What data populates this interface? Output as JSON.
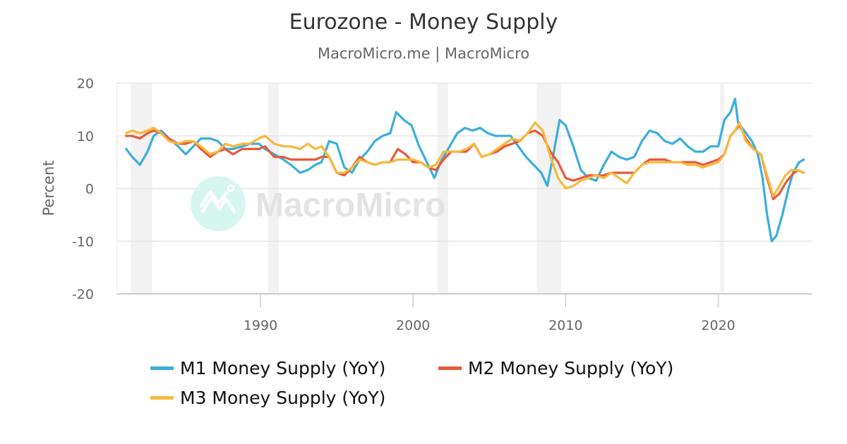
{
  "chart_data": {
    "type": "line",
    "title": "Eurozone - Money Supply",
    "subtitle": "MacroMicro.me | MacroMicro",
    "xlabel": "",
    "ylabel": "Percent",
    "ylim": [
      -20,
      20
    ],
    "yticks": [
      20,
      10,
      0,
      -10,
      -20
    ],
    "xticks": [
      1990,
      2000,
      2010,
      2020
    ],
    "xlim": [
      1981.0,
      2026.0
    ],
    "grid": true,
    "legend_position": "bottom",
    "watermark": "MacroMicro",
    "shaded_periods": [
      [
        1981.5,
        1982.9
      ],
      [
        1990.5,
        1991.2
      ],
      [
        2001.6,
        2002.3
      ],
      [
        2008.1,
        2009.7
      ],
      [
        2020.1,
        2020.4
      ]
    ],
    "series": [
      {
        "name": "M1 Money Supply (YoY)",
        "color": "#3aaedb",
        "x": [
          1981.2,
          1981.6,
          1982.1,
          1982.6,
          1983.0,
          1983.5,
          1984.0,
          1984.6,
          1985.1,
          1985.6,
          1986.1,
          1986.7,
          1987.2,
          1987.7,
          1988.2,
          1988.8,
          1989.3,
          1989.9,
          1990.3,
          1990.9,
          1991.5,
          1992.0,
          1992.6,
          1993.1,
          1993.6,
          1994.0,
          1994.5,
          1995.0,
          1995.5,
          1996.0,
          1996.5,
          1997.0,
          1997.5,
          1998.0,
          1998.5,
          1998.9,
          1999.4,
          1999.9,
          2000.4,
          2000.9,
          2001.4,
          2001.8,
          2002.3,
          2002.9,
          2003.4,
          2003.9,
          2004.4,
          2004.9,
          2005.4,
          2005.9,
          2006.4,
          2006.9,
          2007.4,
          2007.9,
          2008.4,
          2008.8,
          2009.2,
          2009.6,
          2010.0,
          2010.5,
          2011.0,
          2011.5,
          2012.0,
          2012.5,
          2013.0,
          2013.5,
          2014.0,
          2014.5,
          2015.0,
          2015.5,
          2016.0,
          2016.5,
          2017.0,
          2017.5,
          2018.0,
          2018.5,
          2019.0,
          2019.5,
          2020.0,
          2020.4,
          2020.8,
          2021.1,
          2021.3,
          2021.7,
          2022.2,
          2022.6,
          2022.9,
          2023.2,
          2023.5,
          2023.8,
          2024.2,
          2024.6,
          2024.9,
          2025.3,
          2025.6
        ],
        "y": [
          7.5,
          6.0,
          4.5,
          7.0,
          10.0,
          11.0,
          9.5,
          8.0,
          6.5,
          8.0,
          9.5,
          9.5,
          9.0,
          7.5,
          7.5,
          8.0,
          8.5,
          8.5,
          7.5,
          6.5,
          5.5,
          4.5,
          3.0,
          3.5,
          4.5,
          5.0,
          9.0,
          8.5,
          4.0,
          3.0,
          5.5,
          7.0,
          9.0,
          10.0,
          10.5,
          14.5,
          13.0,
          12.0,
          8.0,
          5.0,
          2.0,
          5.0,
          7.5,
          10.5,
          11.5,
          11.0,
          11.5,
          10.5,
          10.0,
          10.0,
          10.0,
          8.0,
          6.0,
          4.5,
          3.0,
          0.5,
          6.5,
          13.0,
          12.0,
          8.0,
          3.5,
          2.0,
          1.5,
          4.5,
          7.0,
          6.0,
          5.5,
          6.0,
          9.0,
          11.0,
          10.5,
          9.0,
          8.5,
          9.5,
          8.0,
          7.0,
          7.0,
          8.0,
          8.0,
          13.0,
          14.5,
          17.0,
          12.5,
          11.0,
          9.0,
          6.5,
          2.0,
          -5.0,
          -10.0,
          -9.0,
          -5.0,
          0.0,
          3.0,
          5.0,
          5.5
        ]
      },
      {
        "name": "M2 Money Supply (YoY)",
        "color": "#e8593a",
        "x": [
          1981.2,
          1981.6,
          1982.1,
          1982.6,
          1983.0,
          1983.5,
          1984.0,
          1984.6,
          1985.1,
          1985.6,
          1986.1,
          1986.7,
          1987.2,
          1987.7,
          1988.2,
          1988.8,
          1989.3,
          1989.9,
          1990.3,
          1990.9,
          1991.5,
          1992.0,
          1992.6,
          1993.1,
          1993.6,
          1994.0,
          1994.5,
          1995.0,
          1995.5,
          1996.0,
          1996.5,
          1997.0,
          1997.5,
          1998.0,
          1998.5,
          1999.0,
          1999.5,
          2000.0,
          2000.5,
          2001.0,
          2001.5,
          2002.0,
          2002.5,
          2003.0,
          2003.5,
          2004.0,
          2004.5,
          2005.0,
          2005.5,
          2006.0,
          2006.5,
          2007.0,
          2007.5,
          2008.0,
          2008.5,
          2009.0,
          2009.5,
          2010.0,
          2010.5,
          2011.0,
          2011.5,
          2012.0,
          2012.5,
          2013.0,
          2013.5,
          2014.0,
          2014.5,
          2015.0,
          2015.5,
          2016.0,
          2016.5,
          2017.0,
          2017.5,
          2018.0,
          2018.5,
          2019.0,
          2019.5,
          2020.0,
          2020.4,
          2020.8,
          2021.1,
          2021.4,
          2021.8,
          2022.3,
          2022.8,
          2023.2,
          2023.6,
          2024.0,
          2024.4,
          2024.8,
          2025.2,
          2025.6
        ],
        "y": [
          10.0,
          10.0,
          9.5,
          10.5,
          11.0,
          10.5,
          9.5,
          8.5,
          8.5,
          9.0,
          7.5,
          6.0,
          7.0,
          7.5,
          6.5,
          7.5,
          7.5,
          7.5,
          8.0,
          6.0,
          6.0,
          5.5,
          5.5,
          5.5,
          5.5,
          6.0,
          6.0,
          3.0,
          2.5,
          4.0,
          6.0,
          5.0,
          4.5,
          5.0,
          5.0,
          7.5,
          6.5,
          5.0,
          5.0,
          4.0,
          3.5,
          5.5,
          7.0,
          7.0,
          7.0,
          8.5,
          6.0,
          6.5,
          7.0,
          8.0,
          8.5,
          9.0,
          10.5,
          11.0,
          10.0,
          7.0,
          5.0,
          2.0,
          1.5,
          2.0,
          2.5,
          2.5,
          2.5,
          3.0,
          3.0,
          3.0,
          3.0,
          4.5,
          5.5,
          5.5,
          5.5,
          5.0,
          5.0,
          5.0,
          5.0,
          4.5,
          5.0,
          5.5,
          6.5,
          10.0,
          11.0,
          12.0,
          9.5,
          7.5,
          6.5,
          2.0,
          -2.0,
          -1.0,
          1.0,
          2.5,
          3.5,
          3.0
        ]
      },
      {
        "name": "M3 Money Supply (YoY)",
        "color": "#f6b93b",
        "x": [
          1981.2,
          1981.6,
          1982.1,
          1982.6,
          1983.0,
          1983.5,
          1984.0,
          1984.6,
          1985.1,
          1985.6,
          1986.1,
          1986.7,
          1987.2,
          1987.7,
          1988.2,
          1988.8,
          1989.3,
          1989.9,
          1990.3,
          1990.9,
          1991.5,
          1992.0,
          1992.6,
          1993.1,
          1993.6,
          1994.0,
          1994.5,
          1995.0,
          1995.5,
          1996.0,
          1996.5,
          1997.0,
          1997.5,
          1998.0,
          1998.5,
          1999.0,
          1999.5,
          2000.0,
          2000.5,
          2001.0,
          2001.5,
          2002.0,
          2002.5,
          2003.0,
          2003.5,
          2004.0,
          2004.5,
          2005.0,
          2005.5,
          2006.0,
          2006.5,
          2007.0,
          2007.5,
          2008.0,
          2008.5,
          2009.0,
          2009.5,
          2010.0,
          2010.5,
          2011.0,
          2011.5,
          2012.0,
          2012.5,
          2013.0,
          2013.5,
          2014.0,
          2014.5,
          2015.0,
          2015.5,
          2016.0,
          2016.5,
          2017.0,
          2017.5,
          2018.0,
          2018.5,
          2019.0,
          2019.5,
          2020.0,
          2020.4,
          2020.8,
          2021.1,
          2021.4,
          2021.8,
          2022.3,
          2022.8,
          2023.2,
          2023.6,
          2024.0,
          2024.4,
          2024.8,
          2025.2,
          2025.6
        ],
        "y": [
          10.5,
          11.0,
          10.5,
          11.0,
          11.5,
          10.5,
          9.0,
          8.5,
          9.0,
          9.0,
          8.0,
          6.5,
          7.0,
          8.5,
          8.0,
          8.5,
          8.5,
          9.5,
          10.0,
          8.5,
          8.0,
          8.0,
          7.5,
          8.5,
          7.5,
          8.0,
          6.0,
          3.0,
          3.0,
          4.0,
          5.5,
          5.0,
          4.5,
          5.0,
          5.0,
          5.5,
          5.5,
          5.5,
          5.0,
          4.0,
          4.5,
          7.0,
          7.0,
          7.0,
          7.5,
          8.5,
          6.0,
          6.5,
          7.5,
          8.5,
          9.5,
          9.0,
          10.5,
          12.5,
          11.0,
          6.0,
          2.0,
          0.0,
          0.5,
          1.5,
          2.0,
          2.5,
          2.0,
          3.0,
          2.0,
          1.0,
          3.0,
          4.5,
          5.0,
          5.0,
          5.0,
          5.0,
          5.0,
          4.5,
          4.5,
          4.0,
          4.5,
          5.0,
          6.5,
          10.0,
          11.0,
          12.5,
          9.0,
          7.5,
          6.5,
          2.5,
          -1.5,
          0.5,
          2.5,
          3.5,
          3.5,
          3.0
        ]
      }
    ]
  },
  "header": {
    "title": "Eurozone - Money Supply",
    "subtitle": "MacroMicro.me | MacroMicro"
  },
  "axes": {
    "ylabel": "Percent",
    "yticks": [
      "20",
      "10",
      "0",
      "-10",
      "-20"
    ],
    "xticks": [
      "1990",
      "2000",
      "2010",
      "2020"
    ]
  },
  "watermark": {
    "text": "MacroMicro"
  },
  "legend": {
    "items": [
      {
        "label": "M1 Money Supply (YoY)",
        "color": "#3aaedb"
      },
      {
        "label": "M2 Money Supply (YoY)",
        "color": "#e8593a"
      },
      {
        "label": "M3 Money Supply (YoY)",
        "color": "#f6b93b"
      }
    ]
  },
  "colors": {
    "grid": "#e6e6e6",
    "band": "#f2f2f2",
    "axis_text": "#666666",
    "watermark_circle": "#d6f6f0",
    "watermark_text": "#e3e3e3"
  }
}
